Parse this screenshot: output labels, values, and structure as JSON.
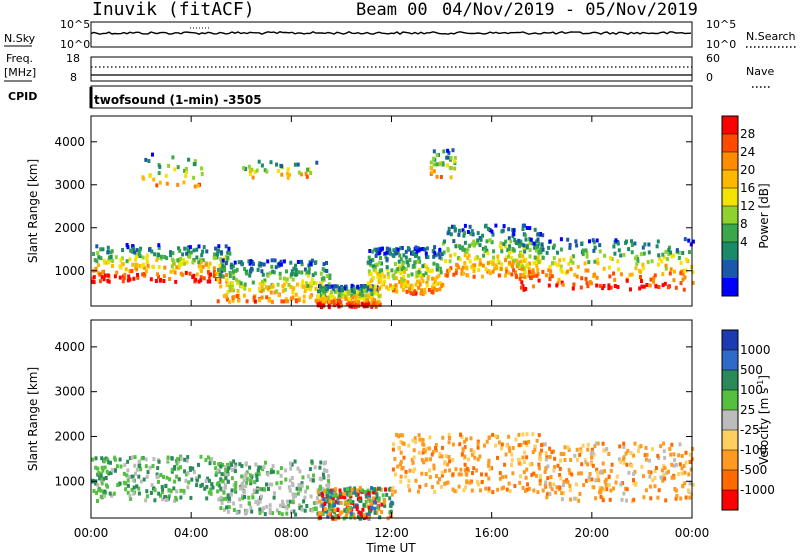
{
  "header": {
    "station": "Inuvik (fitACF)",
    "beam": "Beam 00",
    "dates": "04/Nov/2019 - 05/Nov/2019"
  },
  "aux_panels": {
    "nsky_label": "N.Sky",
    "nsky_ticks": [
      "10^5",
      "10^0"
    ],
    "nsearch_label": "N.Search",
    "freq_label": "Freq.",
    "freq_unit": "[MHz]",
    "freq_ticks": [
      "18",
      "8"
    ],
    "nave_label": "Nave",
    "nave_ticks": [
      "60",
      "0"
    ],
    "cpid_label": "CPID",
    "cpid_text": "twofsound (1-min) -3505"
  },
  "chart_data": [
    {
      "type": "heatmap",
      "title": "",
      "ylabel": "Slant Range [km]",
      "xlabel": "",
      "x_ticks": [
        "00:00",
        "04:00",
        "08:00",
        "12:00",
        "16:00",
        "20:00",
        "00:00"
      ],
      "xlim": [
        0,
        24
      ],
      "y_ticks": [
        1000,
        2000,
        3000,
        4000
      ],
      "ylim": [
        180,
        4600
      ],
      "colorbar": {
        "label": "Power [dB]",
        "ticks": [
          "28",
          "24",
          "20",
          "16",
          "12",
          "8",
          "4"
        ],
        "colors": [
          "#ff0000",
          "#ff4a00",
          "#ff8c00",
          "#ffb800",
          "#f4e200",
          "#8fd22e",
          "#3aa84a",
          "#1a8a68",
          "#1b58a8",
          "#0000ff"
        ]
      },
      "regions": [
        {
          "t0": 0.0,
          "t1": 5.5,
          "r0": 780,
          "r1": 1650,
          "level": "mixed-high"
        },
        {
          "t0": 5.0,
          "t1": 9.5,
          "r0": 320,
          "r1": 1300,
          "level": "mixed"
        },
        {
          "t0": 9.0,
          "t1": 11.5,
          "r0": 200,
          "r1": 700,
          "level": "mixed-high"
        },
        {
          "t0": 11.0,
          "t1": 14.0,
          "r0": 500,
          "r1": 1600,
          "level": "mixed"
        },
        {
          "t0": 14.0,
          "t1": 18.0,
          "r0": 900,
          "r1": 2100,
          "level": "mixed"
        },
        {
          "t0": 17.0,
          "t1": 24.0,
          "r0": 600,
          "r1": 1800,
          "level": "mixed-high"
        },
        {
          "t0": 2.0,
          "t1": 4.5,
          "r0": 3000,
          "r1": 3800,
          "level": "sparse"
        },
        {
          "t0": 6.0,
          "t1": 9.0,
          "r0": 3200,
          "r1": 3600,
          "level": "sparse"
        },
        {
          "t0": 13.5,
          "t1": 14.5,
          "r0": 3200,
          "r1": 3900,
          "level": "sparse"
        }
      ]
    },
    {
      "type": "heatmap",
      "title": "",
      "ylabel": "Slant Range [km]",
      "xlabel": "Time UT",
      "x_ticks": [
        "00:00",
        "04:00",
        "08:00",
        "12:00",
        "16:00",
        "20:00",
        "00:00"
      ],
      "xlim": [
        0,
        24
      ],
      "y_ticks": [
        1000,
        2000,
        3000,
        4000
      ],
      "ylim": [
        180,
        4600
      ],
      "colorbar": {
        "label": "Velocity [m s-1]",
        "label_parts": [
          "Velocity [m s",
          "-1",
          "]"
        ],
        "ticks": [
          "1000",
          "500",
          "100",
          "25",
          "-25",
          "-100",
          "-500",
          "-1000"
        ],
        "colors": [
          "#1a3cb0",
          "#2e6bc8",
          "#2a8a5a",
          "#55c040",
          "#bcbcbc",
          "#ffd060",
          "#ff9a20",
          "#ff6a00",
          "#ff0000"
        ]
      },
      "regions": [
        {
          "t0": 0.0,
          "t1": 5.5,
          "r0": 600,
          "r1": 1600,
          "level": "green"
        },
        {
          "t0": 5.0,
          "t1": 9.5,
          "r0": 300,
          "r1": 1500,
          "level": "green-grey"
        },
        {
          "t0": 9.0,
          "t1": 12.0,
          "r0": 200,
          "r1": 900,
          "level": "mixed"
        },
        {
          "t0": 12.0,
          "t1": 18.0,
          "r0": 800,
          "r1": 2100,
          "level": "orange"
        },
        {
          "t0": 18.0,
          "t1": 24.0,
          "r0": 600,
          "r1": 1900,
          "level": "orange-grey"
        }
      ]
    }
  ]
}
